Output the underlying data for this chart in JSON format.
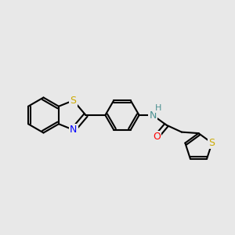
{
  "background_color": "#e8e8e8",
  "bond_color": "#000000",
  "bond_width": 1.5,
  "atom_colors": {
    "S": "#ccaa00",
    "N_thiazole": "#0000ff",
    "N_amide": "#4a9090",
    "O": "#ff0000",
    "H": "#4a9090"
  },
  "font_size": 9
}
